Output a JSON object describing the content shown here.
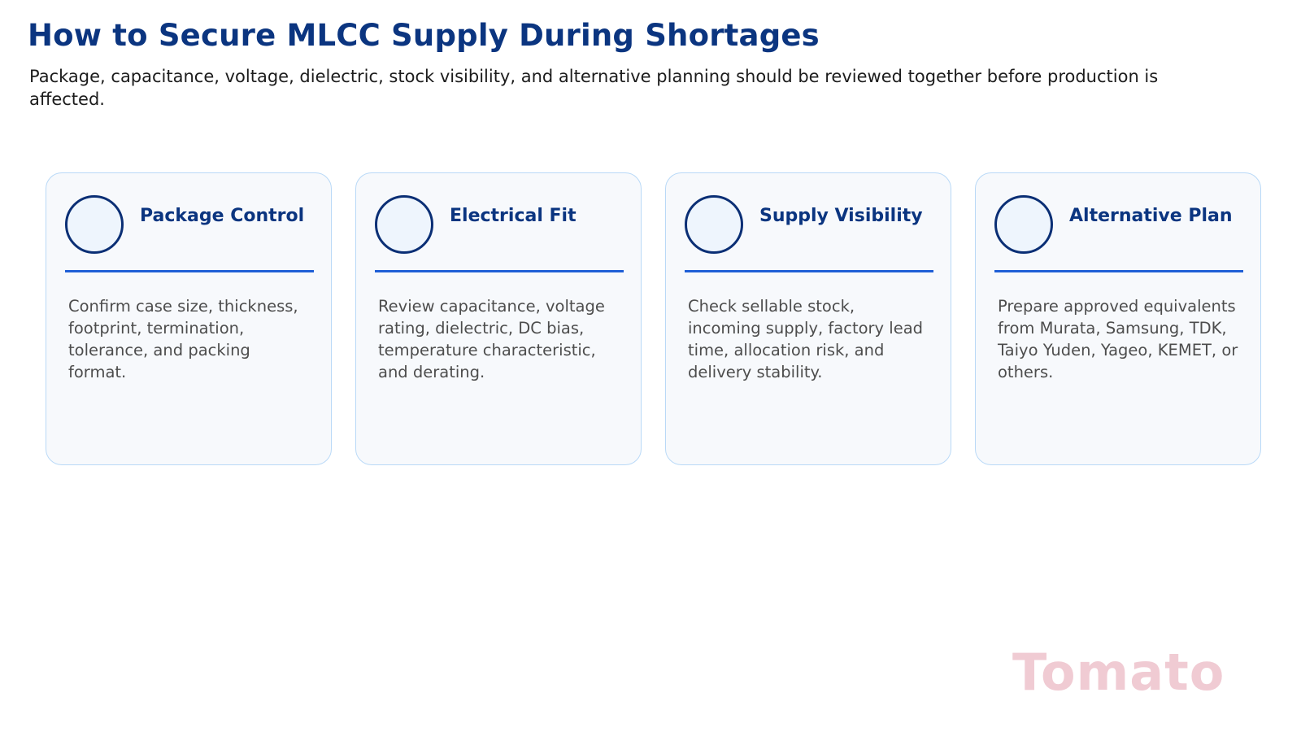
{
  "header": {
    "title": "How to Secure MLCC Supply During Shortages",
    "subtitle": "Package, capacitance, voltage, dielectric, stock visibility, and alternative planning should be reviewed together before production is affected."
  },
  "cards": [
    {
      "title": "Package Control",
      "body": "Confirm case size, thickness, footprint, termination, tolerance, and packing format."
    },
    {
      "title": "Electrical Fit",
      "body": "Review capacitance, voltage rating, dielectric, DC bias, temperature characteristic, and derating."
    },
    {
      "title": "Supply Visibility",
      "body": "Check sellable stock, incoming supply, factory lead time, allocation risk, and delivery stability."
    },
    {
      "title": "Alternative Plan",
      "body": "Prepare approved equivalents from Murata, Samsung, TDK, Taiyo Yuden, Yageo, KEMET, or others."
    }
  ],
  "watermark": {
    "text": "Tomato"
  },
  "colors": {
    "title": "#0b3580",
    "card_border": "#b9d9f7",
    "divider": "#1f5fd6",
    "circle_stroke": "#0b2f75",
    "watermark": "#f0cbd3"
  }
}
